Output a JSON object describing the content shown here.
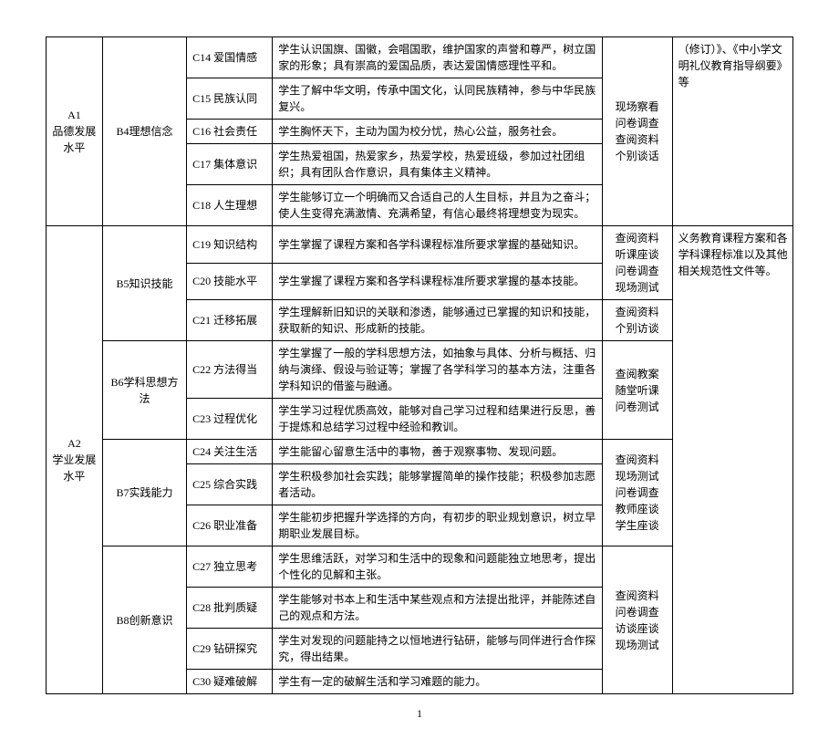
{
  "pageNumber": "1",
  "colA": {
    "a1": "A1\n品德发展\n水平",
    "a2": "A2\n学业发展\n水平"
  },
  "colB": {
    "b4": "B4理想信念",
    "b5": "B5知识技能",
    "b6": "B6学科思想方\n法",
    "b7": "B7实践能力",
    "b8": "B8创新意识"
  },
  "colE": {
    "e1": "现场察看\n问卷调查\n查阅资料\n个别谈话",
    "e2": "查阅资料\n听课座谈\n问卷调查\n现场测试",
    "e3": "查阅资料\n个别访谈",
    "e4": "查阅教案\n随堂听课\n问卷测试",
    "e5": "查阅资料\n现场测试\n问卷调查\n教师座谈\n学生座谈",
    "e6": "查阅资料\n问卷调查\n访谈座谈\n现场测试"
  },
  "colF": {
    "f1": "（修订）》、《中小学文明礼仪教育指导纲要》等",
    "f2": "义务教育课程方案和各学科课程标准以及其他相关规范性文件等。"
  },
  "rows": [
    {
      "c": "C14 爱国情感",
      "d": "学生认识国旗、国徽，会唱国歌，维护国家的声誉和尊严，树立国家的形象；具有崇高的爱国品质，表达爱国情感理性平和。"
    },
    {
      "c": "C15 民族认同",
      "d": "学生了解中华文明，传承中国文化，认同民族精神，参与中华民族复兴。"
    },
    {
      "c": "C16 社会责任",
      "d": "学生胸怀天下，主动为国为校分忧，热心公益，服务社会。"
    },
    {
      "c": "C17 集体意识",
      "d": "学生热爱祖国，热爱家乡，热爱学校，热爱班级，参加过社团组织；具有团队合作意识，具有集体主义精神。"
    },
    {
      "c": "C18 人生理想",
      "d": "学生能够订立一个明确而又合适自己的人生目标，并且为之奋斗；使人生变得充满激情、充满希望，有信心最终将理想变为现实。"
    },
    {
      "c": "C19 知识结构",
      "d": "学生掌握了课程方案和各学科课程标准所要求掌握的基础知识。"
    },
    {
      "c": "C20 技能水平",
      "d": "学生掌握了课程方案和各学科课程标准所要求掌握的基本技能。"
    },
    {
      "c": "C21 迁移拓展",
      "d": "学生理解新旧知识的关联和渗透，能够通过已掌握的知识和技能，获取新的知识、形成新的技能。"
    },
    {
      "c": "C22 方法得当",
      "d": "学生掌握了一般的学科思想方法，如抽象与具体、分析与概括、归纳与演绎、假设与验证等；掌握了各学科学习的基本方法，注重各学科知识的借鉴与融通。"
    },
    {
      "c": "C23 过程优化",
      "d": "学生学习过程优质高效，能够对自己学习过程和结果进行反思，善于提炼和总结学习过程中经验和教训。"
    },
    {
      "c": "C24 关注生活",
      "d": "学生能留心留意生活中的事物，善于观察事物、发现问题。"
    },
    {
      "c": "C25 综合实践",
      "d": "学生积极参加社会实践；能够掌握简单的操作技能；积极参加志愿者活动。"
    },
    {
      "c": "C26 职业准备",
      "d": "学生能初步把握升学选择的方向，有初步的职业规划意识，树立早期职业发展目标。"
    },
    {
      "c": "C27 独立思考",
      "d": "学生思维活跃，对学习和生活中的现象和问题能独立地思考，提出个性化的见解和主张。"
    },
    {
      "c": "C28 批判质疑",
      "d": "学生能够对书本上和生活中某些观点和方法提出批评，并能陈述自己的观点和方法。"
    },
    {
      "c": "C29 钻研探究",
      "d": "学生对发现的问题能持之以恒地进行钻研，能够与同伴进行合作探究，得出结果。"
    },
    {
      "c": "C30 疑难破解",
      "d": "学生有一定的破解生活和学习难题的能力。"
    }
  ]
}
